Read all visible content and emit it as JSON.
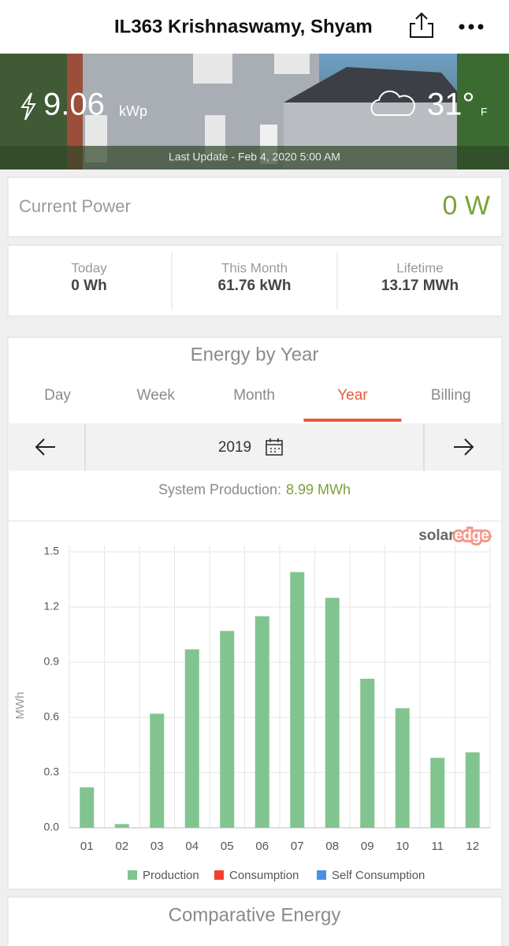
{
  "header": {
    "title": "IL363 Krishnaswamy, Shyam"
  },
  "banner": {
    "power": "9.06",
    "power_unit": "kWp",
    "temperature": "31°",
    "temperature_unit": "F",
    "last_update": "Last Update - Feb 4, 2020 5:00 AM"
  },
  "current_power": {
    "label": "Current Power",
    "value": "0 W"
  },
  "stats": [
    {
      "label": "Today",
      "value": "0 Wh"
    },
    {
      "label": "This Month",
      "value": "61.76 kWh"
    },
    {
      "label": "Lifetime",
      "value": "13.17 MWh"
    }
  ],
  "energy_panel": {
    "title": "Energy by Year",
    "tabs": [
      "Day",
      "Week",
      "Month",
      "Year",
      "Billing"
    ],
    "active_tab_index": 3,
    "period": "2019",
    "production_label": "System Production:",
    "production_value": "8.99 MWh",
    "brand": [
      "solar",
      "edge"
    ]
  },
  "chart_data": {
    "type": "bar",
    "y_label": "MWh",
    "categories": [
      "01",
      "02",
      "03",
      "04",
      "05",
      "06",
      "07",
      "08",
      "09",
      "10",
      "11",
      "12"
    ],
    "series": [
      {
        "name": "Production",
        "color": "#82c48f",
        "values": [
          0.22,
          0.02,
          0.62,
          0.97,
          1.07,
          1.15,
          1.39,
          1.25,
          0.81,
          0.65,
          0.38,
          0.41
        ]
      },
      {
        "name": "Consumption",
        "color": "#f0402b",
        "values": [
          null,
          null,
          null,
          null,
          null,
          null,
          null,
          null,
          null,
          null,
          null,
          null
        ]
      },
      {
        "name": "Self Consumption",
        "color": "#4a90e2",
        "values": [
          null,
          null,
          null,
          null,
          null,
          null,
          null,
          null,
          null,
          null,
          null,
          null
        ]
      }
    ],
    "ylim": [
      0,
      1.5
    ],
    "yticks": [
      {
        "value": 0,
        "label": "0.0"
      },
      0.3,
      0.6,
      0.9,
      1.2,
      1.5
    ],
    "grid": true
  },
  "footer_panel": {
    "title": "Comparative Energy"
  }
}
